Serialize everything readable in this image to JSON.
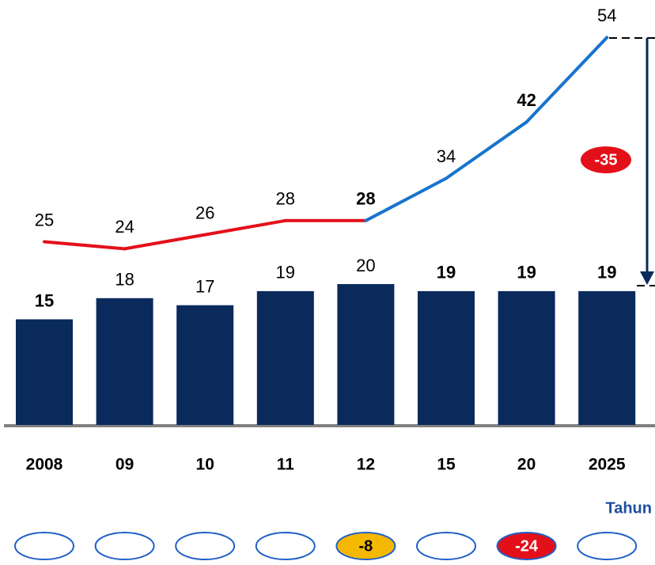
{
  "chart_data": {
    "type": "bar",
    "categories": [
      "2008",
      "09",
      "10",
      "11",
      "12",
      "15",
      "20",
      "2025"
    ],
    "values": [
      15,
      18,
      17,
      19,
      20,
      19,
      19,
      19
    ],
    "color": "#0a2a5c",
    "line": {
      "values": [
        25,
        24,
        26,
        28,
        28,
        34,
        42,
        54
      ],
      "colors": [
        "#e3101a",
        "#e3101a",
        "#e3101a",
        "#e3101a",
        "#e3101a",
        "#1874cd",
        "#1874cd",
        "#1874cd"
      ]
    },
    "annotation": "-35",
    "annotation_color": "#e3101a",
    "xlabel": "Tahun",
    "badges": [
      null,
      null,
      null,
      null,
      "-8",
      null,
      "-24",
      null
    ],
    "badge_colors": [
      null,
      null,
      null,
      null,
      "#f5b800",
      null,
      "#e3101a",
      null
    ]
  }
}
